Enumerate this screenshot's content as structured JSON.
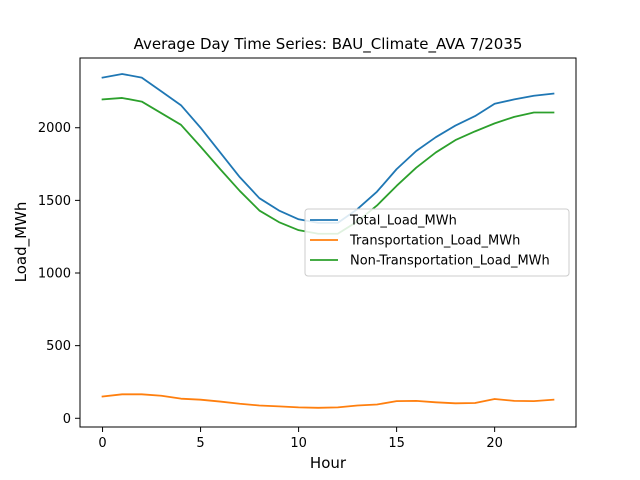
{
  "chart_data": {
    "type": "line",
    "title": "Average Day Time Series: BAU_Climate_AVA 7/2035",
    "xlabel": "Hour",
    "ylabel": "Load_MWh",
    "xlim": [
      -1.15,
      24.15
    ],
    "ylim": [
      -60,
      2480
    ],
    "xticks": [
      0,
      5,
      10,
      15,
      20
    ],
    "yticks": [
      0,
      500,
      1000,
      1500,
      2000
    ],
    "grid": false,
    "legend_position": "center-right",
    "x": [
      0,
      1,
      2,
      3,
      4,
      5,
      6,
      7,
      8,
      9,
      10,
      11,
      12,
      13,
      14,
      15,
      16,
      17,
      18,
      19,
      20,
      21,
      22,
      23
    ],
    "series": [
      {
        "name": "Total_Load_MWh",
        "color": "#1f77b4",
        "values": [
          2345,
          2370,
          2345,
          2250,
          2155,
          2000,
          1830,
          1660,
          1515,
          1430,
          1370,
          1345,
          1345,
          1440,
          1560,
          1715,
          1840,
          1935,
          2015,
          2080,
          2165,
          2195,
          2220,
          2235
        ]
      },
      {
        "name": "Transportation_Load_MWh",
        "color": "#ff7f0e",
        "values": [
          150,
          165,
          165,
          155,
          135,
          128,
          115,
          100,
          88,
          82,
          75,
          72,
          75,
          88,
          95,
          118,
          120,
          110,
          103,
          105,
          133,
          120,
          118,
          128
        ]
      },
      {
        "name": "Non-Transportation_Load_MWh",
        "color": "#2ca02c",
        "values": [
          2195,
          2205,
          2180,
          2100,
          2020,
          1870,
          1715,
          1565,
          1430,
          1350,
          1295,
          1270,
          1270,
          1355,
          1465,
          1600,
          1725,
          1830,
          1915,
          1975,
          2030,
          2075,
          2105,
          2105
        ]
      }
    ]
  }
}
